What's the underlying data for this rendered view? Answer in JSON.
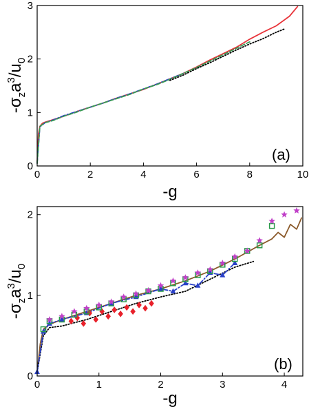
{
  "chart_data": [
    {
      "type": "line",
      "panel_label": "(a)",
      "xlabel": "-g",
      "ylabel": "-σ_z a^3/u_0",
      "xlim": [
        0,
        10
      ],
      "ylim": [
        0,
        3
      ],
      "xticks": [
        "0",
        "2",
        "4",
        "6",
        "8",
        "10"
      ],
      "yticks": [
        "0",
        "1",
        "2",
        "3"
      ],
      "grid": false,
      "series": [
        {
          "color": "#e8343a",
          "style": "solid",
          "x": [
            0,
            0.05,
            0.1,
            0.2,
            0.3,
            0.5,
            1,
            1.5,
            2,
            2.5,
            3,
            3.5,
            4,
            4.5,
            5,
            5.5,
            6,
            6.5,
            7,
            7.5,
            8,
            8.5,
            9,
            9.5,
            9.8
          ],
          "y": [
            0.05,
            0.6,
            0.74,
            0.8,
            0.82,
            0.85,
            0.93,
            1.02,
            1.1,
            1.18,
            1.27,
            1.35,
            1.43,
            1.53,
            1.63,
            1.73,
            1.85,
            1.98,
            2.1,
            2.22,
            2.37,
            2.5,
            2.62,
            2.8,
            2.98
          ]
        },
        {
          "color": "#2a40c8",
          "style": "dashdot",
          "x": [
            0,
            0.1,
            0.3,
            0.6,
            1,
            1.5,
            2,
            2.5,
            3,
            3.5,
            4,
            4.5,
            5,
            5.5
          ],
          "y": [
            0.05,
            0.73,
            0.81,
            0.86,
            0.94,
            1.02,
            1.1,
            1.18,
            1.27,
            1.35,
            1.44,
            1.53,
            1.63,
            1.73
          ]
        },
        {
          "color": "#3a9a55",
          "style": "dashed",
          "x": [
            0,
            0.1,
            0.3,
            0.6,
            1,
            1.5,
            2,
            2.5,
            3,
            3.5,
            4,
            4.5,
            5,
            5.5,
            6,
            6.5,
            7,
            7.5,
            8
          ],
          "y": [
            0.05,
            0.74,
            0.81,
            0.85,
            0.93,
            1.01,
            1.1,
            1.18,
            1.26,
            1.34,
            1.44,
            1.52,
            1.62,
            1.73,
            1.84,
            1.96,
            2.08,
            2.2,
            2.32
          ]
        },
        {
          "color": "#000000",
          "style": "dotted",
          "x": [
            5,
            5.5,
            6,
            6.5,
            7,
            7.5,
            8,
            8.5,
            9,
            9.3
          ],
          "y": [
            1.6,
            1.7,
            1.82,
            1.93,
            2.05,
            2.17,
            2.28,
            2.38,
            2.5,
            2.56
          ]
        }
      ]
    },
    {
      "type": "scatter",
      "panel_label": "(b)",
      "xlabel": "-g",
      "ylabel": "-σ_z a^3/u_0",
      "xlim": [
        0,
        4.3
      ],
      "ylim": [
        0,
        2.1
      ],
      "xticks": [
        "0",
        "1",
        "2",
        "3",
        "4"
      ],
      "yticks": [
        "0",
        "1",
        "2"
      ],
      "grid": false,
      "series": [
        {
          "color": "#8b5a2b",
          "style": "solid",
          "marker": "none",
          "x": [
            0,
            0.05,
            0.1,
            0.2,
            0.4,
            0.8,
            1.2,
            1.6,
            2.0,
            2.4,
            2.8,
            3.2,
            3.6,
            3.8,
            3.9,
            4.0,
            4.1,
            4.2,
            4.28
          ],
          "y": [
            0.05,
            0.4,
            0.58,
            0.64,
            0.7,
            0.8,
            0.9,
            1.0,
            1.08,
            1.18,
            1.3,
            1.45,
            1.62,
            1.7,
            1.78,
            1.72,
            1.88,
            1.82,
            1.96
          ]
        },
        {
          "color": "#000000",
          "style": "dotted",
          "marker": "none",
          "x": [
            0,
            0.1,
            0.2,
            0.4,
            0.8,
            1.2,
            1.6,
            2.0,
            2.4,
            2.8,
            3.2,
            3.5
          ],
          "y": [
            0.05,
            0.5,
            0.6,
            0.62,
            0.7,
            0.8,
            0.9,
            0.98,
            1.05,
            1.2,
            1.35,
            1.42
          ]
        },
        {
          "color": "#2a40c8",
          "style": "dashdot",
          "marker": "triangle",
          "x": [
            0,
            0.1,
            0.2,
            0.4,
            0.8,
            1.2,
            1.6,
            2.0,
            2.2,
            2.4,
            2.6,
            2.8,
            3.0,
            3.2
          ],
          "y": [
            0.05,
            0.55,
            0.65,
            0.7,
            0.78,
            0.9,
            0.98,
            1.08,
            1.05,
            1.15,
            1.12,
            1.28,
            1.25,
            1.4
          ]
        },
        {
          "color": "#e8202a",
          "style": "none",
          "marker": "diamond",
          "x": [
            0.55,
            0.65,
            0.75,
            0.85,
            0.95,
            1.05,
            1.15,
            1.25,
            1.35,
            1.45,
            1.55,
            1.65,
            1.75,
            1.85
          ],
          "y": [
            0.68,
            0.72,
            0.65,
            0.78,
            0.7,
            0.8,
            0.74,
            0.82,
            0.77,
            0.85,
            0.8,
            0.88,
            0.84,
            0.9
          ]
        },
        {
          "color": "#2a9a4a",
          "style": "none",
          "marker": "square",
          "x": [
            0.1,
            0.2,
            0.4,
            0.6,
            0.8,
            1.0,
            1.2,
            1.4,
            1.6,
            1.8,
            2.0,
            2.2,
            2.4,
            2.6,
            2.8,
            3.0,
            3.2,
            3.4,
            3.6,
            3.8
          ],
          "y": [
            0.58,
            0.68,
            0.7,
            0.76,
            0.8,
            0.85,
            0.9,
            0.95,
            1.0,
            1.05,
            1.08,
            1.15,
            1.2,
            1.25,
            1.3,
            1.38,
            1.45,
            1.55,
            1.62,
            1.86
          ]
        },
        {
          "color": "#c040c8",
          "style": "none",
          "marker": "star",
          "x": [
            0.2,
            0.4,
            0.6,
            0.8,
            1.0,
            1.2,
            1.4,
            1.6,
            1.8,
            2.0,
            2.2,
            2.4,
            2.6,
            2.8,
            3.0,
            3.2,
            3.4,
            3.6,
            3.8,
            4.0,
            4.2
          ],
          "y": [
            0.7,
            0.74,
            0.8,
            0.84,
            0.88,
            0.92,
            0.98,
            1.02,
            1.06,
            1.12,
            1.18,
            1.22,
            1.28,
            1.32,
            1.4,
            1.48,
            1.55,
            1.68,
            1.92,
            2.0,
            2.05
          ]
        }
      ]
    }
  ]
}
